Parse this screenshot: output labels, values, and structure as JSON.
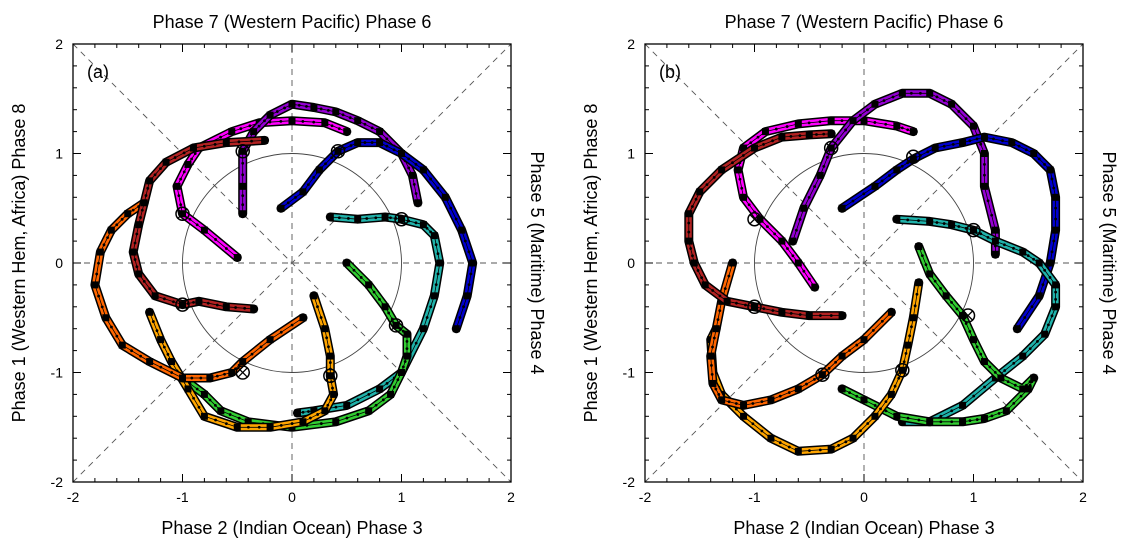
{
  "chart_data": [
    {
      "type": "line",
      "panel_label": "(a)",
      "top_label": "Phase 7 (Western Pacific) Phase 6",
      "bottom_label": "Phase 2 (Indian Ocean) Phase 3",
      "left_label": "Phase 1 (Western Hem, Africa) Phase 8",
      "right_label": "Phase 5 (Maritime) Phase 4",
      "xlim": [
        -2,
        2
      ],
      "ylim": [
        -2,
        2
      ],
      "xticks": [
        "-2",
        "-1",
        "0",
        "1",
        "2"
      ],
      "yticks": [
        "-2",
        "-1",
        "0",
        "1",
        "2"
      ],
      "series": [
        {
          "color": "#ff00ff",
          "points": [
            [
              -0.5,
              0.05
            ],
            [
              -0.8,
              0.3
            ],
            [
              -1.0,
              0.45
            ],
            [
              -1.05,
              0.7
            ],
            [
              -0.95,
              0.9
            ],
            [
              -0.85,
              1.05
            ],
            [
              -0.55,
              1.2
            ],
            [
              -0.3,
              1.28
            ],
            [
              0.0,
              1.3
            ],
            [
              0.3,
              1.28
            ],
            [
              0.5,
              1.2
            ]
          ]
        },
        {
          "color": "#9400d3",
          "points": [
            [
              -0.45,
              0.45
            ],
            [
              -0.45,
              0.7
            ],
            [
              -0.45,
              1.02
            ],
            [
              -0.35,
              1.2
            ],
            [
              -0.2,
              1.35
            ],
            [
              0.0,
              1.45
            ],
            [
              0.2,
              1.42
            ],
            [
              0.4,
              1.38
            ],
            [
              0.6,
              1.3
            ],
            [
              0.8,
              1.2
            ],
            [
              1.0,
              1.0
            ],
            [
              1.1,
              0.8
            ],
            [
              1.15,
              0.55
            ]
          ]
        },
        {
          "color": "#0000cd",
          "points": [
            [
              -0.1,
              0.5
            ],
            [
              0.1,
              0.65
            ],
            [
              0.25,
              0.85
            ],
            [
              0.42,
              1.02
            ],
            [
              0.6,
              1.1
            ],
            [
              0.8,
              1.1
            ],
            [
              1.0,
              1.0
            ],
            [
              1.2,
              0.85
            ],
            [
              1.4,
              0.6
            ],
            [
              1.55,
              0.3
            ],
            [
              1.65,
              0.0
            ],
            [
              1.6,
              -0.3
            ],
            [
              1.5,
              -0.6
            ]
          ]
        },
        {
          "color": "#20b2aa",
          "points": [
            [
              0.35,
              0.42
            ],
            [
              0.6,
              0.4
            ],
            [
              0.85,
              0.42
            ],
            [
              1.0,
              0.4
            ],
            [
              1.2,
              0.35
            ],
            [
              1.3,
              0.25
            ],
            [
              1.35,
              0.0
            ],
            [
              1.3,
              -0.3
            ],
            [
              1.2,
              -0.6
            ],
            [
              1.0,
              -1.0
            ],
            [
              0.8,
              -1.15
            ],
            [
              0.5,
              -1.3
            ],
            [
              0.2,
              -1.35
            ],
            [
              0.05,
              -1.37
            ]
          ]
        },
        {
          "color": "#32cd32",
          "points": [
            [
              0.5,
              0.0
            ],
            [
              0.7,
              -0.2
            ],
            [
              0.85,
              -0.4
            ],
            [
              0.95,
              -0.57
            ],
            [
              1.05,
              -0.65
            ],
            [
              1.05,
              -0.85
            ],
            [
              1.0,
              -1.0
            ],
            [
              0.9,
              -1.2
            ],
            [
              0.7,
              -1.35
            ],
            [
              0.4,
              -1.45
            ],
            [
              0.0,
              -1.5
            ],
            [
              -0.4,
              -1.45
            ],
            [
              -0.65,
              -1.35
            ],
            [
              -0.8,
              -1.2
            ],
            [
              -1.0,
              -1.05
            ]
          ]
        },
        {
          "color": "#ffa500",
          "points": [
            [
              0.2,
              -0.3
            ],
            [
              0.3,
              -0.6
            ],
            [
              0.35,
              -0.85
            ],
            [
              0.35,
              -1.03
            ],
            [
              0.38,
              -1.2
            ],
            [
              0.3,
              -1.35
            ],
            [
              0.1,
              -1.45
            ],
            [
              -0.2,
              -1.5
            ],
            [
              -0.5,
              -1.5
            ],
            [
              -0.8,
              -1.4
            ],
            [
              -0.95,
              -1.15
            ],
            [
              -1.1,
              -0.9
            ],
            [
              -1.2,
              -0.7
            ],
            [
              -1.3,
              -0.45
            ]
          ]
        },
        {
          "color": "#ff6600",
          "points": [
            [
              0.1,
              -0.5
            ],
            [
              -0.2,
              -0.7
            ],
            [
              -0.45,
              -0.9
            ],
            [
              -0.55,
              -1.0
            ],
            [
              -0.75,
              -1.05
            ],
            [
              -1.0,
              -1.05
            ],
            [
              -1.3,
              -0.9
            ],
            [
              -1.55,
              -0.75
            ],
            [
              -1.7,
              -0.5
            ],
            [
              -1.8,
              -0.2
            ],
            [
              -1.75,
              0.1
            ],
            [
              -1.65,
              0.3
            ],
            [
              -1.5,
              0.45
            ],
            [
              -1.35,
              0.55
            ]
          ]
        },
        {
          "color": "#b22222",
          "points": [
            [
              -0.35,
              -0.42
            ],
            [
              -0.6,
              -0.4
            ],
            [
              -0.85,
              -0.35
            ],
            [
              -1.0,
              -0.38
            ],
            [
              -1.25,
              -0.3
            ],
            [
              -1.4,
              -0.1
            ],
            [
              -1.45,
              0.1
            ],
            [
              -1.4,
              0.35
            ],
            [
              -1.35,
              0.55
            ],
            [
              -1.3,
              0.75
            ],
            [
              -1.15,
              0.92
            ],
            [
              -0.9,
              1.05
            ],
            [
              -0.6,
              1.1
            ],
            [
              -0.25,
              1.12
            ]
          ]
        }
      ],
      "circles": [
        [
          -1.0,
          0.45
        ],
        [
          -0.45,
          1.02
        ],
        [
          0.42,
          1.02
        ],
        [
          1.0,
          0.4
        ],
        [
          0.95,
          -0.57
        ],
        [
          0.35,
          -1.03
        ],
        [
          -0.45,
          -1.0
        ],
        [
          -1.0,
          -0.38
        ]
      ]
    },
    {
      "type": "line",
      "panel_label": "(b)",
      "top_label": "Phase 7 (Western Pacific) Phase 6",
      "bottom_label": "Phase 2 (Indian Ocean) Phase 3",
      "left_label": "Phase 1 (Western Hem, Africa) Phase 8",
      "right_label": "Phase 5 (Maritime) Phase 4",
      "xlim": [
        -2,
        2
      ],
      "ylim": [
        -2,
        2
      ],
      "xticks": [
        "-2",
        "-1",
        "0",
        "1",
        "2"
      ],
      "yticks": [
        "-2",
        "-1",
        "0",
        "1",
        "2"
      ],
      "series": [
        {
          "color": "#ff00ff",
          "points": [
            [
              -0.45,
              -0.22
            ],
            [
              -0.6,
              0.0
            ],
            [
              -0.75,
              0.2
            ],
            [
              -0.95,
              0.4
            ],
            [
              -1.1,
              0.6
            ],
            [
              -1.15,
              0.85
            ],
            [
              -1.1,
              1.05
            ],
            [
              -0.9,
              1.2
            ],
            [
              -0.6,
              1.27
            ],
            [
              -0.3,
              1.3
            ],
            [
              0.0,
              1.3
            ],
            [
              0.3,
              1.25
            ],
            [
              0.45,
              1.2
            ]
          ]
        },
        {
          "color": "#9400d3",
          "points": [
            [
              -0.65,
              0.2
            ],
            [
              -0.55,
              0.5
            ],
            [
              -0.4,
              0.8
            ],
            [
              -0.3,
              1.05
            ],
            [
              -0.1,
              1.3
            ],
            [
              0.1,
              1.45
            ],
            [
              0.35,
              1.55
            ],
            [
              0.6,
              1.55
            ],
            [
              0.8,
              1.45
            ],
            [
              1.0,
              1.25
            ],
            [
              1.1,
              1.0
            ],
            [
              1.1,
              0.7
            ],
            [
              1.2,
              0.3
            ],
            [
              1.2,
              0.08
            ]
          ]
        },
        {
          "color": "#0000cd",
          "points": [
            [
              -0.2,
              0.5
            ],
            [
              0.1,
              0.7
            ],
            [
              0.3,
              0.85
            ],
            [
              0.45,
              0.95
            ],
            [
              0.65,
              1.05
            ],
            [
              0.9,
              1.1
            ],
            [
              1.1,
              1.15
            ],
            [
              1.35,
              1.1
            ],
            [
              1.55,
              1.0
            ],
            [
              1.7,
              0.85
            ],
            [
              1.75,
              0.6
            ],
            [
              1.75,
              0.3
            ],
            [
              1.7,
              0.0
            ],
            [
              1.6,
              -0.3
            ],
            [
              1.4,
              -0.6
            ]
          ]
        },
        {
          "color": "#20b2aa",
          "points": [
            [
              0.3,
              0.4
            ],
            [
              0.6,
              0.38
            ],
            [
              0.8,
              0.35
            ],
            [
              1.0,
              0.3
            ],
            [
              1.2,
              0.2
            ],
            [
              1.45,
              0.1
            ],
            [
              1.6,
              0.0
            ],
            [
              1.75,
              -0.2
            ],
            [
              1.75,
              -0.4
            ],
            [
              1.65,
              -0.65
            ],
            [
              1.45,
              -0.85
            ],
            [
              1.2,
              -1.05
            ],
            [
              0.9,
              -1.3
            ],
            [
              0.6,
              -1.45
            ],
            [
              0.35,
              -1.45
            ]
          ]
        },
        {
          "color": "#32cd32",
          "points": [
            [
              0.5,
              0.15
            ],
            [
              0.6,
              -0.1
            ],
            [
              0.75,
              -0.3
            ],
            [
              0.9,
              -0.48
            ],
            [
              1.0,
              -0.7
            ],
            [
              1.1,
              -0.9
            ],
            [
              1.25,
              -1.05
            ],
            [
              1.45,
              -1.15
            ],
            [
              1.55,
              -1.05
            ],
            [
              1.5,
              -1.15
            ],
            [
              1.3,
              -1.35
            ],
            [
              1.1,
              -1.42
            ],
            [
              0.9,
              -1.45
            ],
            [
              0.6,
              -1.45
            ],
            [
              0.3,
              -1.4
            ],
            [
              0.0,
              -1.25
            ],
            [
              -0.2,
              -1.15
            ]
          ]
        },
        {
          "color": "#ffa500",
          "points": [
            [
              0.5,
              -0.18
            ],
            [
              0.45,
              -0.5
            ],
            [
              0.4,
              -0.75
            ],
            [
              0.35,
              -0.98
            ],
            [
              0.25,
              -1.2
            ],
            [
              0.1,
              -1.4
            ],
            [
              -0.1,
              -1.6
            ],
            [
              -0.3,
              -1.7
            ],
            [
              -0.6,
              -1.72
            ],
            [
              -0.85,
              -1.6
            ],
            [
              -1.1,
              -1.4
            ],
            [
              -1.3,
              -1.2
            ],
            [
              -1.38,
              -1.0
            ],
            [
              -1.4,
              -0.7
            ],
            [
              -1.35,
              -0.6
            ]
          ]
        },
        {
          "color": "#ff6600",
          "points": [
            [
              0.25,
              -0.45
            ],
            [
              0.0,
              -0.7
            ],
            [
              -0.2,
              -0.85
            ],
            [
              -0.38,
              -1.02
            ],
            [
              -0.6,
              -1.15
            ],
            [
              -0.85,
              -1.25
            ],
            [
              -1.1,
              -1.3
            ],
            [
              -1.3,
              -1.25
            ],
            [
              -1.38,
              -1.1
            ],
            [
              -1.4,
              -0.85
            ],
            [
              -1.35,
              -0.6
            ],
            [
              -1.3,
              -0.35
            ],
            [
              -1.2,
              0.0
            ]
          ]
        },
        {
          "color": "#b22222",
          "points": [
            [
              -0.2,
              -0.48
            ],
            [
              -0.5,
              -0.48
            ],
            [
              -0.75,
              -0.45
            ],
            [
              -1.0,
              -0.4
            ],
            [
              -1.25,
              -0.35
            ],
            [
              -1.45,
              -0.2
            ],
            [
              -1.55,
              0.0
            ],
            [
              -1.6,
              0.2
            ],
            [
              -1.6,
              0.45
            ],
            [
              -1.5,
              0.65
            ],
            [
              -1.3,
              0.85
            ],
            [
              -1.0,
              1.05
            ],
            [
              -0.75,
              1.15
            ],
            [
              -0.5,
              1.17
            ],
            [
              -0.3,
              1.18
            ]
          ]
        }
      ],
      "circles": [
        [
          -1.0,
          0.4
        ],
        [
          -0.3,
          1.05
        ],
        [
          0.45,
          0.97
        ],
        [
          1.0,
          0.3
        ],
        [
          0.95,
          -0.48
        ],
        [
          0.35,
          -0.98
        ],
        [
          -0.38,
          -1.02
        ],
        [
          -1.0,
          -0.4
        ]
      ]
    }
  ]
}
